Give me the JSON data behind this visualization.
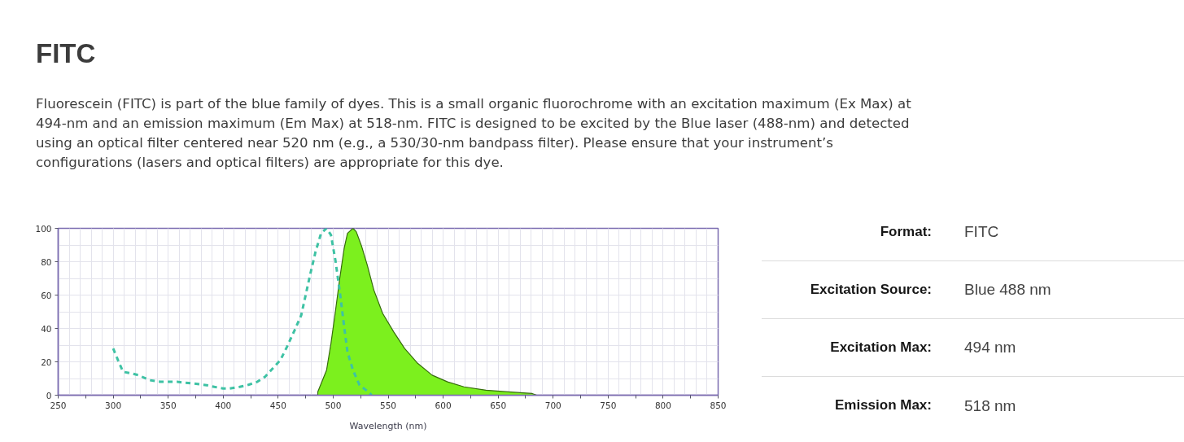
{
  "chart_data": [
    {
      "type": "line",
      "title": "FITC",
      "subtitle": "Fluorescein (FITC) is part of the blue family of dyes. This is a small organic fluorochrome with an excitation maximum (Ex Max) at 494-nm and an emission maximum (Em Max) at 518-nm. FITC is designed to be excited by the Blue laser (488-nm) and detected using an optical filter centered near 520 nm (e.g., a 530/30-nm bandpass filter). Please ensure that your instrument’s configurations (lasers and optical filters) are appropriate for this dye.",
      "xlabel": "Wavelength (nm)",
      "xlim": [
        250,
        850
      ],
      "ylim": [
        0,
        100
      ],
      "xticks": [
        250,
        {
          "value": 275,
          "label": null
        },
        300,
        {
          "value": 325,
          "label": null
        },
        350,
        {
          "value": 375,
          "label": null
        },
        400,
        {
          "value": 425,
          "label": null
        },
        450,
        {
          "value": 475,
          "label": null
        },
        500,
        {
          "value": 525,
          "label": null
        },
        550,
        {
          "value": 575,
          "label": null
        },
        600,
        {
          "value": 625,
          "label": null
        },
        650,
        {
          "value": 675,
          "label": null
        },
        700,
        {
          "value": 725,
          "label": null
        },
        750,
        {
          "value": 775,
          "label": null
        },
        800,
        {
          "value": 825,
          "label": null
        },
        850
      ],
      "yticks": [
        0,
        20,
        40,
        60,
        80,
        100
      ],
      "grid": true,
      "series": [
        {
          "type": "line",
          "color": "#3ec2a4",
          "line_style": "dashed",
          "x": [
            300,
            305,
            309,
            317,
            323,
            333,
            343,
            358,
            373,
            385,
            392,
            400,
            406,
            415,
            422,
            431,
            438,
            445,
            452,
            458,
            465,
            471,
            479,
            484,
            489,
            494,
            498,
            502,
            505,
            507,
            510,
            513,
            518,
            524,
            532,
            535
          ],
          "values": [
            28,
            20,
            14,
            13,
            12,
            9,
            8,
            8,
            7,
            6,
            5,
            4,
            4,
            5,
            6,
            8,
            11,
            16,
            21,
            29,
            39,
            48,
            72,
            86,
            97,
            100,
            96,
            81,
            67,
            57,
            41,
            26,
            15,
            6,
            2,
            0
          ]
        },
        {
          "type": "area",
          "color": "#7cf01e",
          "x": [
            486,
            494,
            498,
            502,
            506,
            510,
            513,
            518,
            521,
            526,
            531,
            537,
            545,
            555,
            565,
            577,
            590,
            604,
            619,
            639,
            659,
            681,
            685
          ],
          "values": [
            2,
            15,
            31,
            50,
            70,
            88,
            97,
            100,
            98,
            89,
            78,
            63,
            49,
            38,
            28,
            19,
            12,
            8,
            5,
            3,
            2,
            1,
            0
          ]
        }
      ]
    },
    {
      "type": "other",
      "annotations": [
        "Format:",
        "FITC",
        "Excitation Source:",
        "Blue 488 nm",
        "Excitation Max:",
        "494 nm",
        "Emission Max:",
        "518 nm"
      ]
    }
  ]
}
